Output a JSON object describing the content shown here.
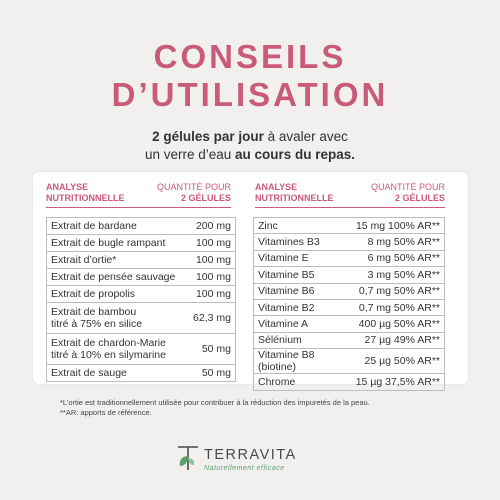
{
  "title_line1": "CONSEILS",
  "title_line2": "D’UTILISATION",
  "intro": {
    "l1_bold": "2 gélules par jour",
    "l1_rest": " à avaler avec",
    "l2_start": "un verre d’eau ",
    "l2_bold": "au cours du repas."
  },
  "left_table": {
    "head_name": "ANALYSE NUTRITIONNELLE",
    "head_qty_1": "QUANTITÉ POUR",
    "head_qty_2": "2 GÉLULES",
    "rows": [
      {
        "name": "Extrait de bardane",
        "value": "200 mg"
      },
      {
        "name": "Extrait de bugle rampant",
        "value": "100 mg"
      },
      {
        "name": "Extrait d’ortie*",
        "value": "100 mg"
      },
      {
        "name": "Extrait de pensée sauvage",
        "value": "100 mg"
      },
      {
        "name": "Extrait de propolis",
        "value": "100 mg"
      },
      {
        "name": "Extrait de bambou",
        "name2": "titré à 75% en silice",
        "value": "62,3 mg"
      },
      {
        "name": "Extrait de chardon-Marie",
        "name2": "titré à 10% en silymarine",
        "value": "50 mg"
      },
      {
        "name": "Extrait de sauge",
        "value": "50 mg"
      }
    ]
  },
  "right_table": {
    "head_name": "ANALYSE NUTRITIONNELLE",
    "head_qty_1": "QUANTITÉ POUR",
    "head_qty_2": "2 GÉLULES",
    "rows": [
      {
        "name": "Zinc",
        "value": "15 mg 100% AR**"
      },
      {
        "name": "Vitamines B3",
        "value": "8 mg 50% AR**"
      },
      {
        "name": "Vitamine E",
        "value": "6 mg 50% AR**"
      },
      {
        "name": "Vitamine B5",
        "value": "3 mg 50% AR**"
      },
      {
        "name": "Vitamine B6",
        "value": "0,7 mg 50% AR**"
      },
      {
        "name": "Vitamine B2",
        "value": "0,7 mg 50% AR**"
      },
      {
        "name": "Vitamine A",
        "value": "400 µg 50% AR**"
      },
      {
        "name": "Sélénium",
        "value": "27 µg 49% AR**"
      },
      {
        "name": "Vitamine B8 (biotine)",
        "value": "25 µg 50% AR**"
      },
      {
        "name": "Chrome",
        "value": "15 µg 37,5% AR**"
      }
    ]
  },
  "footnotes": {
    "f1": "*L’ortie est traditionnellement utilisée pour contribuer à la réduction des impuretés de la peau.",
    "f2": "**AR: apports de référence."
  },
  "brand": {
    "name": "TERRAVITA",
    "tagline": "Naturellement efficace"
  },
  "colors": {
    "accent": "#c95a7a",
    "leaf": "#5e9e6e",
    "background": "#f1f0ef"
  }
}
